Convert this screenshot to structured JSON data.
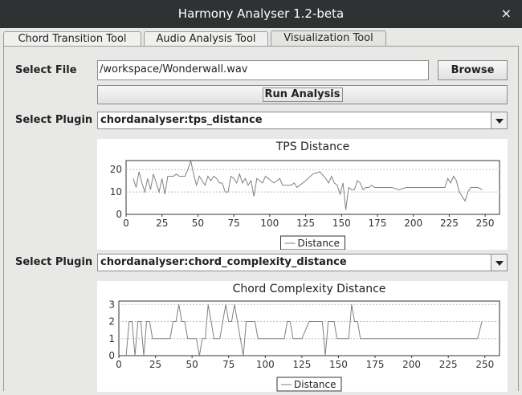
{
  "window": {
    "title": "Harmony Analyser 1.2-beta",
    "close_glyph": "×"
  },
  "tabs": [
    {
      "label": "Chord Transition Tool",
      "active": false
    },
    {
      "label": "Audio Analysis Tool",
      "active": false
    },
    {
      "label": "Visualization Tool",
      "active": true
    }
  ],
  "file": {
    "label": "Select File",
    "path": "/workspace/Wonderwall.wav",
    "browse_label": "Browse",
    "run_label": "Run Analysis"
  },
  "plugin1": {
    "label": "Select Plugin",
    "value": "chordanalyser:tps_distance"
  },
  "plugin2": {
    "label": "Select Plugin",
    "value": "chordanalyser:chord_complexity_distance"
  },
  "colors": {
    "line": "#808080",
    "grid": "#bdbdbd",
    "axis": "#333333"
  },
  "icons": {
    "dropdown": "chevron-down-icon",
    "close": "close-icon"
  },
  "chart_data": [
    {
      "type": "line",
      "title": "TPS Distance",
      "legend": "Distance",
      "legend_position": "bottom",
      "xlim": [
        0,
        260
      ],
      "ylim": [
        0,
        24
      ],
      "xticks": [
        0,
        25,
        50,
        75,
        100,
        125,
        150,
        175,
        200,
        225,
        250
      ],
      "yticks": [
        0,
        10,
        20
      ],
      "grid": true,
      "series": [
        {
          "name": "Distance",
          "x": [
            5,
            7,
            9,
            11,
            13,
            15,
            17,
            19,
            21,
            23,
            25,
            27,
            29,
            31,
            33,
            35,
            37,
            39,
            41,
            43,
            45,
            47,
            49,
            51,
            53,
            55,
            57,
            59,
            61,
            63,
            65,
            67,
            69,
            71,
            73,
            75,
            77,
            79,
            81,
            83,
            85,
            87,
            89,
            91,
            93,
            95,
            97,
            99,
            101,
            103,
            105,
            107,
            109,
            111,
            113,
            115,
            117,
            119,
            121,
            125,
            130,
            135,
            139,
            141,
            143,
            145,
            147,
            149,
            151,
            153,
            155,
            157,
            159,
            161,
            163,
            165,
            167,
            169,
            171,
            173,
            175,
            180,
            185,
            190,
            195,
            200,
            205,
            210,
            215,
            220,
            222,
            224,
            226,
            228,
            230,
            232,
            234,
            236,
            238,
            240,
            242,
            245,
            248
          ],
          "y": [
            16,
            12,
            19,
            14,
            10,
            16,
            11,
            18,
            14,
            10,
            16,
            9,
            17,
            17,
            17,
            18,
            17,
            17,
            17,
            20,
            24,
            18,
            13,
            17,
            15,
            13,
            17,
            15,
            17,
            16,
            14,
            14,
            10,
            10,
            17,
            16,
            14,
            18,
            14,
            16,
            13,
            15,
            8,
            16,
            15,
            14,
            17,
            16,
            15,
            14,
            15,
            16,
            13,
            13,
            13,
            13,
            14,
            12,
            13,
            15,
            18,
            19,
            16,
            14,
            17,
            14,
            13,
            9,
            14,
            2,
            12,
            11,
            11,
            15,
            14,
            11,
            12,
            12,
            13,
            12,
            12,
            12,
            12,
            11,
            12,
            12,
            12,
            12,
            12,
            12,
            12,
            16,
            14,
            17,
            15,
            10,
            8,
            6,
            10,
            12,
            12,
            12,
            11
          ]
        }
      ]
    },
    {
      "type": "line",
      "title": "Chord Complexity Distance",
      "legend": "Distance",
      "legend_position": "bottom",
      "xlim": [
        0,
        260
      ],
      "ylim": [
        0,
        3.2
      ],
      "xticks": [
        0,
        25,
        50,
        75,
        100,
        125,
        150,
        175,
        200,
        225,
        250
      ],
      "yticks": [
        0,
        1,
        2,
        3
      ],
      "grid": true,
      "series": [
        {
          "name": "Distance",
          "x": [
            5,
            7,
            9,
            11,
            13,
            15,
            17,
            19,
            21,
            23,
            25,
            27,
            29,
            31,
            33,
            35,
            37,
            39,
            41,
            43,
            45,
            47,
            49,
            51,
            53,
            55,
            57,
            59,
            61,
            63,
            65,
            67,
            69,
            71,
            73,
            75,
            77,
            79,
            81,
            83,
            85,
            87,
            89,
            91,
            93,
            95,
            97,
            99,
            101,
            103,
            105,
            107,
            109,
            111,
            113,
            115,
            117,
            119,
            121,
            125,
            130,
            135,
            139,
            141,
            143,
            145,
            147,
            149,
            151,
            153,
            155,
            157,
            159,
            161,
            163,
            165,
            167,
            169,
            171,
            173,
            175,
            180,
            185,
            190,
            195,
            200,
            205,
            210,
            215,
            220,
            222,
            224,
            226,
            228,
            230,
            232,
            234,
            236,
            238,
            240,
            242,
            245,
            248
          ],
          "y": [
            0,
            2,
            2,
            0,
            2,
            2,
            0,
            2,
            2,
            1,
            1,
            1,
            1,
            1,
            1,
            1,
            2,
            2,
            3,
            2,
            2,
            1,
            1,
            1,
            1,
            0,
            1,
            1,
            3,
            2,
            1,
            1,
            1,
            2,
            3,
            2,
            2,
            3,
            2,
            1,
            0,
            2,
            2,
            2,
            2,
            1,
            1,
            1,
            1,
            1,
            1,
            1,
            1,
            1,
            1,
            2,
            2,
            1,
            1,
            1,
            2,
            2,
            2,
            0,
            2,
            2,
            2,
            1,
            1,
            1,
            1,
            1,
            3,
            2,
            2,
            1,
            1,
            1,
            1,
            1,
            1,
            1,
            1,
            1,
            1,
            1,
            1,
            1,
            1,
            1,
            1,
            1,
            1,
            1,
            1,
            1,
            1,
            1,
            1,
            1,
            1,
            1,
            2
          ]
        }
      ]
    }
  ]
}
